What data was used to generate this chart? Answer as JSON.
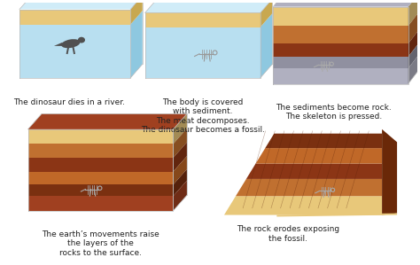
{
  "background_color": "#ffffff",
  "captions": [
    "The dinosaur dies in a river.",
    "The body is covered\nwith sediment.\nThe meat decomposes.\nThe dinosaur becomes a fossil.",
    "The sediments become rock.\nThe skeleton is pressed.",
    "The earth’s movements raise\nthe layers of the\nrocks to the surface.",
    "The rock erodes exposing\nthe fossil."
  ],
  "water_color": "#b8dff0",
  "water_light": "#d0ecf8",
  "water_side": "#8ec8e0",
  "sand_color": "#e8c87a",
  "sand_side": "#c8a850",
  "rock_orange": "#c87840",
  "rock_dark_brown": "#7a3010",
  "rock_med_brown": "#a04820",
  "rock_red_brown": "#8b3a18",
  "rock_grey": "#9090a0",
  "rock_grey_light": "#b0b0c0",
  "text_color": "#222222",
  "caption_fontsize": 6.5
}
